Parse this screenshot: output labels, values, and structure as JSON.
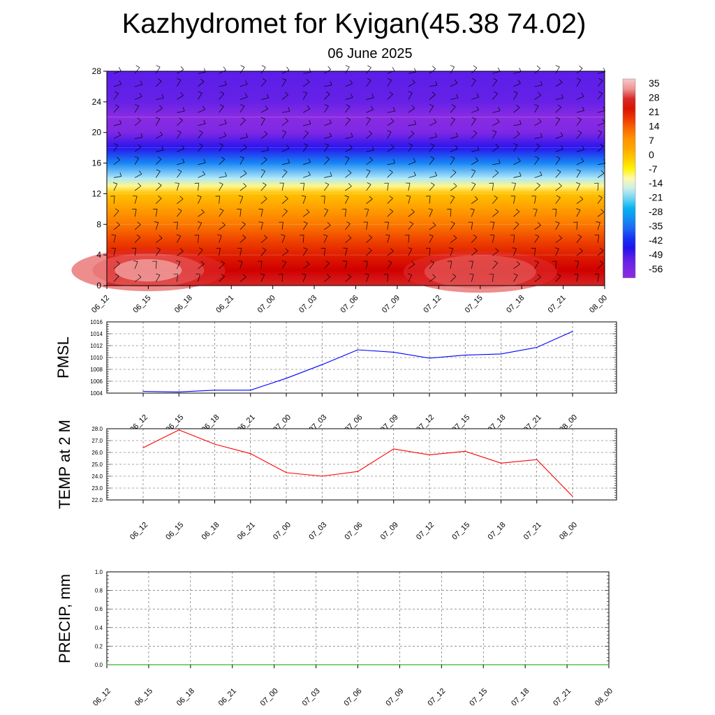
{
  "header": {
    "title": "Kazhydromet for Kyigan(45.38 74.02)",
    "subtitle": "06 June 2025"
  },
  "chart_data": [
    {
      "type": "heatmap",
      "xlabel": "",
      "ylabel": "",
      "x_tick_labels": [
        "06_12",
        "06_15",
        "06_18",
        "06_21",
        "07_00",
        "07_03",
        "07_06",
        "07_09",
        "07_12",
        "07_15",
        "07_18",
        "07_21",
        "08_00"
      ],
      "y_ticks": [
        0,
        4,
        8,
        12,
        16,
        20,
        24,
        28
      ],
      "ylim": [
        0,
        28
      ],
      "colorbar_labels": [
        "35",
        "28",
        "21",
        "14",
        "7",
        "0",
        "-7",
        "-14",
        "-21",
        "-28",
        "-35",
        "-42",
        "-49",
        "-56"
      ],
      "temperature_profile": {
        "heights": [
          0,
          2,
          4,
          6,
          8,
          10,
          12,
          13,
          14,
          16,
          18,
          20,
          22,
          24,
          28
        ],
        "values": [
          28,
          26,
          22,
          17,
          12,
          6,
          0,
          -10,
          -18,
          -32,
          -46,
          -56,
          -58,
          -52,
          -50
        ]
      },
      "warm_cores": [
        {
          "time_index": 1,
          "height": 2,
          "value": 35
        },
        {
          "time_index": 9,
          "height": 1.8,
          "value": 30
        }
      ],
      "wind_barbs": true,
      "colors": {
        "warm_max": "#f8c8c8",
        "hot": "#d00000",
        "orange": "#ff8c00",
        "yellow": "#fff200",
        "light_blue": "#aee8f8",
        "cyan": "#00b0f0",
        "blue": "#1010f0",
        "violet": "#8a2be2"
      }
    },
    {
      "type": "line",
      "ylabel": "PMSL",
      "x_tick_labels": [
        "06_12",
        "06_15",
        "06_18",
        "06_21",
        "07_00",
        "07_03",
        "07_06",
        "07_09",
        "07_12",
        "07_15",
        "07_18",
        "07_21",
        "08_00"
      ],
      "y_ticks": [
        "1004",
        "1006",
        "1008",
        "1010",
        "1012",
        "1014",
        "1016"
      ],
      "ylim": [
        1004,
        1016
      ],
      "grid": true,
      "series": [
        {
          "values": [
            1004.3,
            1004.2,
            1004.5,
            1004.5,
            1006.5,
            1008.8,
            1011.3,
            1010.9,
            1009.9,
            1010.4,
            1010.6,
            1011.7,
            1014.4
          ],
          "color": "#0000ff"
        }
      ]
    },
    {
      "type": "line",
      "ylabel": "TEMP at 2 M",
      "x_tick_labels": [
        "06_12",
        "06_15",
        "06_18",
        "06_21",
        "07_00",
        "07_03",
        "07_06",
        "07_09",
        "07_12",
        "07_15",
        "07_18",
        "07_21",
        "08_00"
      ],
      "y_ticks": [
        "22.0",
        "23.0",
        "24.0",
        "25.0",
        "26.0",
        "27.0",
        "28.0"
      ],
      "ylim": [
        22,
        28
      ],
      "grid": true,
      "series": [
        {
          "values": [
            26.4,
            27.9,
            26.7,
            25.9,
            24.3,
            24.0,
            24.4,
            26.3,
            25.8,
            26.1,
            25.1,
            25.4,
            22.3
          ],
          "color": "#ff0000"
        }
      ]
    },
    {
      "type": "line",
      "ylabel": "PRECIP, mm",
      "x_tick_labels": [
        "06_12",
        "06_15",
        "06_18",
        "06_21",
        "07_00",
        "07_03",
        "07_06",
        "07_09",
        "07_12",
        "07_15",
        "07_18",
        "07_21",
        "08_00"
      ],
      "y_ticks": [
        "0.0",
        "0.2",
        "0.4",
        "0.6",
        "0.8",
        "1.0"
      ],
      "ylim": [
        0,
        1
      ],
      "grid": true,
      "series": [
        {
          "values": [
            0,
            0,
            0,
            0,
            0,
            0,
            0,
            0,
            0,
            0,
            0,
            0,
            0
          ],
          "color": "#00a000"
        }
      ]
    }
  ]
}
